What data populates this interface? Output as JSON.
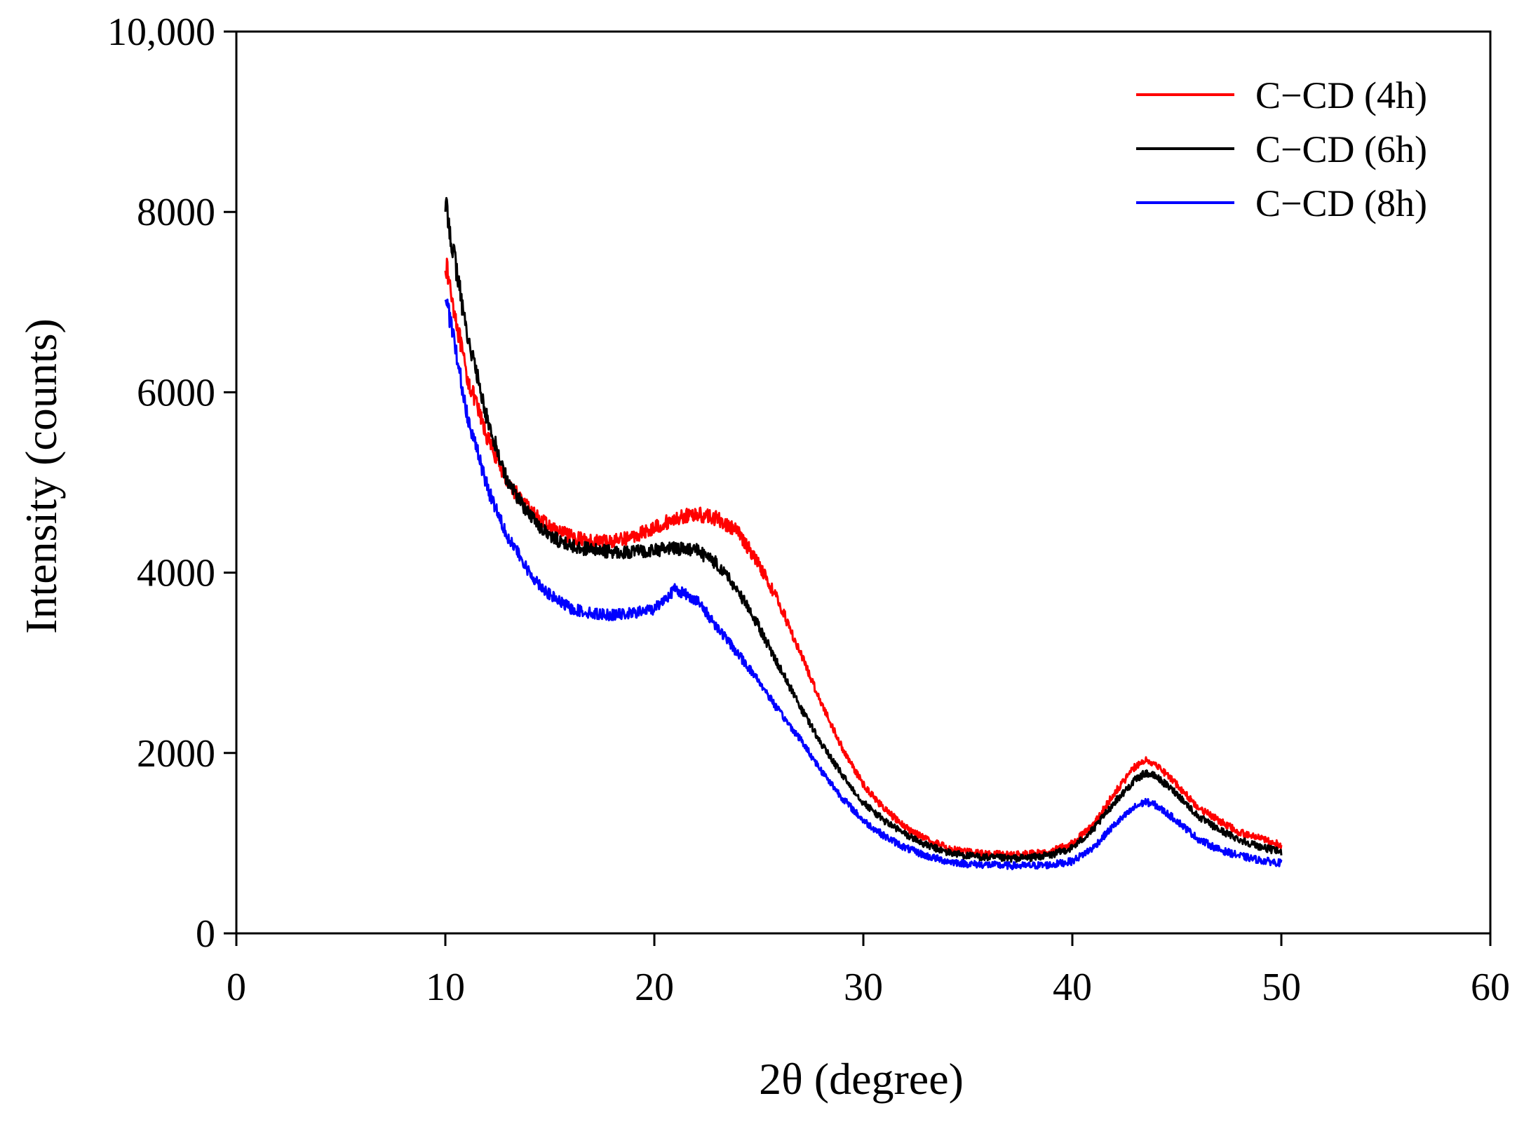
{
  "chart_data": {
    "type": "line",
    "title": "",
    "xlabel": "2θ (degree)",
    "ylabel": "Intensity (counts)",
    "xlim": [
      0,
      60
    ],
    "ylim": [
      0,
      10000
    ],
    "x_ticks": [
      0,
      10,
      20,
      30,
      40,
      50,
      60
    ],
    "x_tick_labels": [
      "0",
      "10",
      "20",
      "30",
      "40",
      "50",
      "60"
    ],
    "y_ticks": [
      0,
      2000,
      4000,
      6000,
      8000,
      10000
    ],
    "y_tick_labels": [
      "0",
      "2000",
      "4000",
      "6000",
      "8000",
      "10,000"
    ],
    "grid": false,
    "legend_position": "top-right",
    "series": [
      {
        "name": "C−CD (4h)",
        "color": "#ff0000",
        "x": [
          10,
          11,
          12,
          13,
          14,
          15,
          16,
          17,
          18,
          19,
          20,
          21,
          22,
          23,
          24,
          25,
          26,
          27,
          28,
          29,
          30,
          31,
          32,
          33,
          34,
          35,
          36,
          37,
          38,
          39,
          40,
          41,
          42,
          43,
          43.5,
          44,
          45,
          46,
          47,
          48,
          49,
          50
        ],
        "values": [
          7450,
          6200,
          5500,
          5000,
          4700,
          4500,
          4400,
          4350,
          4350,
          4400,
          4500,
          4600,
          4650,
          4600,
          4450,
          4100,
          3650,
          3100,
          2550,
          2050,
          1650,
          1380,
          1180,
          1040,
          950,
          900,
          880,
          870,
          880,
          910,
          1000,
          1200,
          1550,
          1850,
          1920,
          1880,
          1650,
          1400,
          1250,
          1120,
          1050,
          980
        ]
      },
      {
        "name": "C−CD (6h)",
        "color": "#000000",
        "x": [
          10,
          11,
          12,
          13,
          14,
          15,
          16,
          17,
          18,
          19,
          20,
          21,
          22,
          23,
          24,
          25,
          26,
          27,
          28,
          29,
          30,
          31,
          32,
          33,
          34,
          35,
          36,
          37,
          38,
          39,
          40,
          41,
          42,
          43,
          43.5,
          44,
          45,
          46,
          47,
          48,
          49,
          50
        ],
        "values": [
          8100,
          6700,
          5700,
          5000,
          4650,
          4400,
          4300,
          4250,
          4230,
          4230,
          4250,
          4270,
          4250,
          4100,
          3800,
          3400,
          2950,
          2500,
          2100,
          1750,
          1450,
          1250,
          1100,
          980,
          900,
          860,
          840,
          830,
          840,
          870,
          950,
          1150,
          1450,
          1700,
          1780,
          1740,
          1550,
          1300,
          1150,
          1040,
          960,
          900
        ]
      },
      {
        "name": "C−CD (8h)",
        "color": "#0000ff",
        "x": [
          10,
          11,
          12,
          13,
          14,
          15,
          16,
          17,
          18,
          19,
          20,
          21,
          22,
          23,
          24,
          25,
          26,
          27,
          28,
          29,
          30,
          31,
          32,
          33,
          34,
          35,
          36,
          37,
          38,
          39,
          40,
          41,
          42,
          43,
          43.5,
          44,
          45,
          46,
          47,
          48,
          49,
          50
        ],
        "values": [
          7100,
          5800,
          4950,
          4400,
          4000,
          3750,
          3600,
          3550,
          3530,
          3550,
          3600,
          3820,
          3700,
          3400,
          3100,
          2800,
          2450,
          2150,
          1800,
          1500,
          1250,
          1080,
          950,
          860,
          800,
          770,
          760,
          750,
          750,
          760,
          800,
          950,
          1200,
          1400,
          1460,
          1420,
          1250,
          1050,
          930,
          860,
          810,
          780
        ]
      }
    ]
  }
}
